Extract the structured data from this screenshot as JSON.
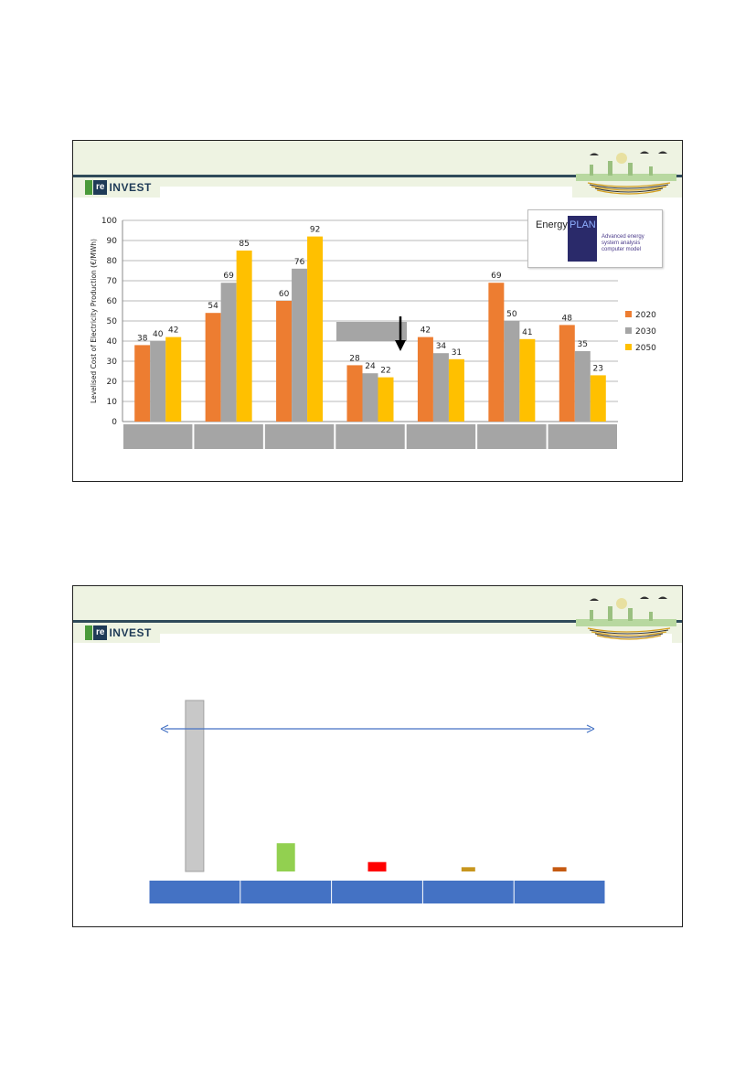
{
  "slide1": {
    "logo": {
      "badge": "re",
      "word": "INVEST"
    },
    "energyplan": {
      "word": "Energy",
      "plan": "PLAN",
      "subtitle": [
        "Advanced energy",
        "system analysis",
        "computer model"
      ]
    },
    "chart_data": {
      "type": "bar",
      "ylabel": "Levelised Cost of Electricity Production (€/MWh)",
      "ylim": [
        0,
        100
      ],
      "yticks": [
        0,
        10,
        20,
        30,
        40,
        50,
        60,
        70,
        80,
        90,
        100
      ],
      "categories": [
        "",
        "",
        "",
        "",
        "",
        "",
        ""
      ],
      "series": [
        {
          "name": "2020",
          "color": "#ed7d31",
          "values": [
            38,
            54,
            60,
            28,
            42,
            69,
            48
          ]
        },
        {
          "name": "2030",
          "color": "#a5a5a5",
          "values": [
            40,
            69,
            76,
            24,
            34,
            50,
            35
          ]
        },
        {
          "name": "2050",
          "color": "#ffc000",
          "values": [
            42,
            85,
            92,
            22,
            31,
            41,
            23
          ]
        }
      ],
      "grid": true,
      "legend": "right"
    }
  },
  "slide2": {
    "logo": {
      "badge": "re",
      "word": "INVEST"
    },
    "chart_data": {
      "type": "bar",
      "categories": [
        "",
        "",
        "",
        "",
        ""
      ],
      "values": [
        100,
        16.5,
        5.5,
        2.5,
        2.5
      ],
      "colors": [
        "#c8c8c8",
        "#92d050",
        "#ff0000",
        "#c8961e",
        "#c55a11"
      ],
      "annotation": "double-headed arrow spanning all categories",
      "grid": false
    }
  }
}
